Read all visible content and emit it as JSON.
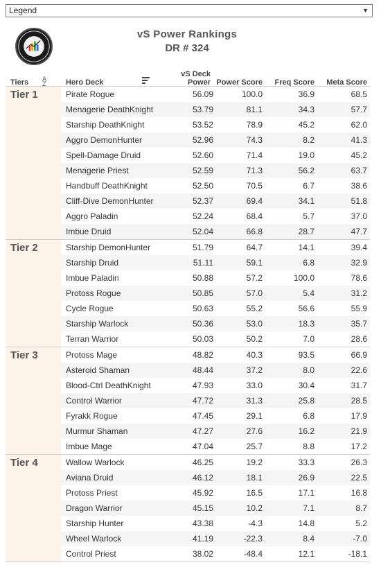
{
  "legend": {
    "label": "Legend"
  },
  "header": {
    "title": "vS Power Rankings",
    "subtitle": "DR # 324"
  },
  "columns": {
    "tiers": "Tiers",
    "hero_deck": "Hero Deck",
    "vs_deck_power_line1": "vS Deck",
    "vs_deck_power_line2": "Power",
    "power_score": "Power Score",
    "freq_score": "Freq Score",
    "meta_score": "Meta Score"
  },
  "chart_data": {
    "type": "table",
    "title": "vS Power Rankings",
    "subtitle": "DR # 324",
    "columns": [
      "Tiers",
      "Hero Deck",
      "vS Deck Power",
      "Power Score",
      "Freq Score",
      "Meta Score"
    ],
    "tiers": [
      {
        "name": "Tier 1",
        "rows": [
          {
            "deck": "Pirate Rogue",
            "vs_power": "56.09",
            "power_score": "100.0",
            "freq_score": "36.9",
            "meta_score": "68.5"
          },
          {
            "deck": "Menagerie DeathKnight",
            "vs_power": "53.79",
            "power_score": "81.1",
            "freq_score": "34.3",
            "meta_score": "57.7"
          },
          {
            "deck": "Starship DeathKnight",
            "vs_power": "53.52",
            "power_score": "78.9",
            "freq_score": "45.2",
            "meta_score": "62.0"
          },
          {
            "deck": "Aggro DemonHunter",
            "vs_power": "52.96",
            "power_score": "74.3",
            "freq_score": "8.2",
            "meta_score": "41.3"
          },
          {
            "deck": "Spell-Damage Druid",
            "vs_power": "52.60",
            "power_score": "71.4",
            "freq_score": "19.0",
            "meta_score": "45.2"
          },
          {
            "deck": "Menagerie Priest",
            "vs_power": "52.59",
            "power_score": "71.3",
            "freq_score": "56.2",
            "meta_score": "63.7"
          },
          {
            "deck": "Handbuff DeathKnight",
            "vs_power": "52.50",
            "power_score": "70.5",
            "freq_score": "6.7",
            "meta_score": "38.6"
          },
          {
            "deck": "Cliff-Dive DemonHunter",
            "vs_power": "52.37",
            "power_score": "69.4",
            "freq_score": "34.1",
            "meta_score": "51.8"
          },
          {
            "deck": "Aggro Paladin",
            "vs_power": "52.24",
            "power_score": "68.4",
            "freq_score": "5.7",
            "meta_score": "37.0"
          },
          {
            "deck": "Imbue Druid",
            "vs_power": "52.04",
            "power_score": "66.8",
            "freq_score": "28.7",
            "meta_score": "47.7"
          }
        ]
      },
      {
        "name": "Tier 2",
        "rows": [
          {
            "deck": "Starship DemonHunter",
            "vs_power": "51.79",
            "power_score": "64.7",
            "freq_score": "14.1",
            "meta_score": "39.4"
          },
          {
            "deck": "Starship Druid",
            "vs_power": "51.11",
            "power_score": "59.1",
            "freq_score": "6.8",
            "meta_score": "32.9"
          },
          {
            "deck": "Imbue Paladin",
            "vs_power": "50.88",
            "power_score": "57.2",
            "freq_score": "100.0",
            "meta_score": "78.6"
          },
          {
            "deck": "Protoss Rogue",
            "vs_power": "50.85",
            "power_score": "57.0",
            "freq_score": "5.4",
            "meta_score": "31.2"
          },
          {
            "deck": "Cycle Rogue",
            "vs_power": "50.63",
            "power_score": "55.2",
            "freq_score": "56.6",
            "meta_score": "55.9"
          },
          {
            "deck": "Starship Warlock",
            "vs_power": "50.36",
            "power_score": "53.0",
            "freq_score": "18.3",
            "meta_score": "35.7"
          },
          {
            "deck": "Terran Warrior",
            "vs_power": "50.03",
            "power_score": "50.2",
            "freq_score": "7.0",
            "meta_score": "28.6"
          }
        ]
      },
      {
        "name": "Tier 3",
        "rows": [
          {
            "deck": "Protoss Mage",
            "vs_power": "48.82",
            "power_score": "40.3",
            "freq_score": "93.5",
            "meta_score": "66.9"
          },
          {
            "deck": "Asteroid Shaman",
            "vs_power": "48.44",
            "power_score": "37.2",
            "freq_score": "8.0",
            "meta_score": "22.6"
          },
          {
            "deck": "Blood-Ctrl DeathKnight",
            "vs_power": "47.93",
            "power_score": "33.0",
            "freq_score": "30.4",
            "meta_score": "31.7"
          },
          {
            "deck": "Control Warrior",
            "vs_power": "47.72",
            "power_score": "31.3",
            "freq_score": "25.8",
            "meta_score": "28.5"
          },
          {
            "deck": "Fyrakk Rogue",
            "vs_power": "47.45",
            "power_score": "29.1",
            "freq_score": "6.8",
            "meta_score": "17.9"
          },
          {
            "deck": "Murmur Shaman",
            "vs_power": "47.27",
            "power_score": "27.6",
            "freq_score": "16.2",
            "meta_score": "21.9"
          },
          {
            "deck": "Imbue Mage",
            "vs_power": "47.04",
            "power_score": "25.7",
            "freq_score": "8.8",
            "meta_score": "17.2"
          }
        ]
      },
      {
        "name": "Tier 4",
        "rows": [
          {
            "deck": "Wallow Warlock",
            "vs_power": "46.25",
            "power_score": "19.2",
            "freq_score": "33.3",
            "meta_score": "26.3"
          },
          {
            "deck": "Aviana Druid",
            "vs_power": "46.12",
            "power_score": "18.1",
            "freq_score": "26.9",
            "meta_score": "22.5"
          },
          {
            "deck": "Protoss Priest",
            "vs_power": "45.92",
            "power_score": "16.5",
            "freq_score": "17.1",
            "meta_score": "16.8"
          },
          {
            "deck": "Dragon Warrior",
            "vs_power": "45.15",
            "power_score": "10.2",
            "freq_score": "7.1",
            "meta_score": "8.7"
          },
          {
            "deck": "Starship Hunter",
            "vs_power": "43.38",
            "power_score": "-4.3",
            "freq_score": "14.8",
            "meta_score": "5.2"
          },
          {
            "deck": "Wheel Warlock",
            "vs_power": "41.19",
            "power_score": "-22.3",
            "freq_score": "8.4",
            "meta_score": "-7.0"
          },
          {
            "deck": "Control Priest",
            "vs_power": "38.02",
            "power_score": "-48.4",
            "freq_score": "12.1",
            "meta_score": "-18.1"
          }
        ]
      }
    ]
  },
  "colors": {
    "tier_bg": "#fdf3e8",
    "alt_row": "#f5f5f5",
    "divider": "#cfcfcf"
  },
  "icons": {
    "sort": "sort-az-icon",
    "filter": "filter-lines-icon",
    "dropdown": "chevron-down-icon"
  }
}
